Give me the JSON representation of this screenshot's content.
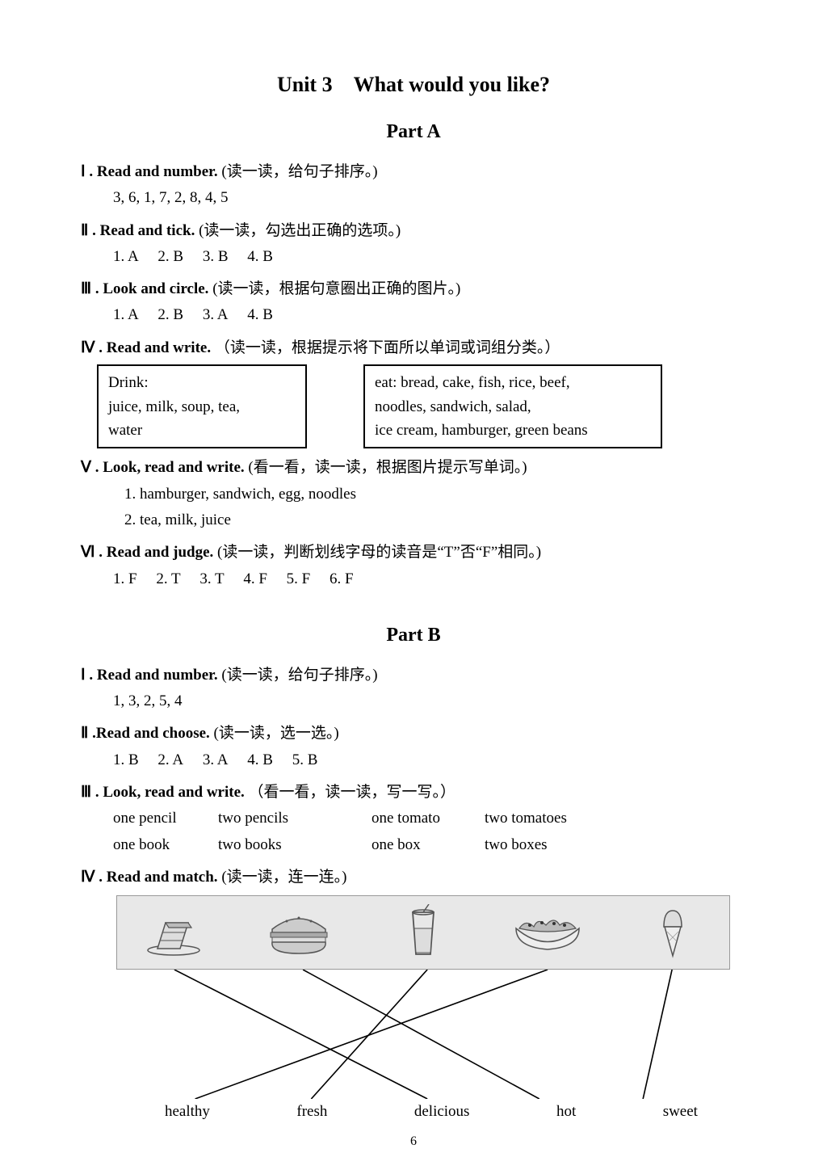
{
  "unit_title": "Unit 3 What would you like?",
  "part_a_title": "Part A",
  "part_b_title": "Part B",
  "page_number": "6",
  "partA": {
    "s1": {
      "roman": "Ⅰ",
      "title_en": ". Read and number.",
      "title_cn": "(读一读，给句子排序。)",
      "answers": "3,  6,  1,  7,  2,  8,  4,  5"
    },
    "s2": {
      "roman": "Ⅱ",
      "title_en": ". Read and tick.",
      "title_cn": " (读一读，勾选出正确的选项。)",
      "answers": "1. A  2. B   3. B   4. B"
    },
    "s3": {
      "roman": "Ⅲ",
      "title_en": ". Look and circle.",
      "title_cn": " (读一读，根据句意圈出正确的图片。)",
      "answers": "1. A  2. B   3. A   4. B"
    },
    "s4": {
      "roman": "Ⅳ",
      "title_en": ".  Read and write.",
      "title_cn": "（读一读，根据提示将下面所以单词或词组分类。）",
      "box_left_l1": "Drink:",
      "box_left_l2": "juice, milk, soup, tea,",
      "box_left_l3": "water",
      "box_right_l1": "eat:  bread, cake, fish, rice, beef,",
      "box_right_l2": "noodles, sandwich, salad,",
      "box_right_l3": "ice cream, hamburger, green beans"
    },
    "s5": {
      "roman": "Ⅴ",
      "title_en": ".  Look, read and write.",
      "title_cn": "(看一看，读一读，根据图片提示写单词。)",
      "a1": "1. hamburger, sandwich, egg, noodles",
      "a2": "2. tea, milk, juice"
    },
    "s6": {
      "roman": "Ⅵ",
      "title_en": ". Read and judge.",
      "title_cn": " (读一读，判断划线字母的读音是“T”否“F”相同。)",
      "answers": "1. F  2. T   3. T   4. F   5. F   6. F"
    }
  },
  "partB": {
    "s1": {
      "roman": "Ⅰ",
      "title_en": ". Read and number.",
      "title_cn": "(读一读，给句子排序。)",
      "answers": "1,  3,  2,  5,  4"
    },
    "s2": {
      "roman": "Ⅱ",
      "title_en": ".Read and choose.",
      "title_cn": "(读一读，选一选。)",
      "answers": "1. B  2. A   3. A   4. B   5. B"
    },
    "s3": {
      "roman": "Ⅲ",
      "title_en": ". Look, read and write.",
      "title_cn": "（看一看，读一读，写一写。）",
      "r1c1": "one pencil",
      "r1c2": "two pencils",
      "r1c3": "one tomato",
      "r1c4": "two tomatoes",
      "r2c1": "one book",
      "r2c2": "two books",
      "r2c3": "one box",
      "r2c4": "two boxes"
    },
    "s4": {
      "roman": "Ⅳ",
      "title_en": ". Read and match.",
      "title_cn": "(读一读，连一连。)",
      "labels": {
        "l1": "healthy",
        "l2": "fresh",
        "l3": "delicious",
        "l4": "hot",
        "l5": "sweet"
      }
    }
  },
  "match_diagram": {
    "strip_bg": "#e8e8e8",
    "line_color": "#000000",
    "line_width": 1.6,
    "food_positions_x": [
      70,
      225,
      375,
      520,
      670
    ],
    "label_positions_x": [
      95,
      235,
      375,
      510,
      635
    ],
    "lines": [
      {
        "from_food": 0,
        "to_label": 2
      },
      {
        "from_food": 1,
        "to_label": 3
      },
      {
        "from_food": 2,
        "to_label": 1
      },
      {
        "from_food": 3,
        "to_label": 0
      },
      {
        "from_food": 4,
        "to_label": 4
      }
    ]
  },
  "colors": {
    "text": "#000000",
    "background": "#ffffff",
    "box_border": "#000000"
  }
}
